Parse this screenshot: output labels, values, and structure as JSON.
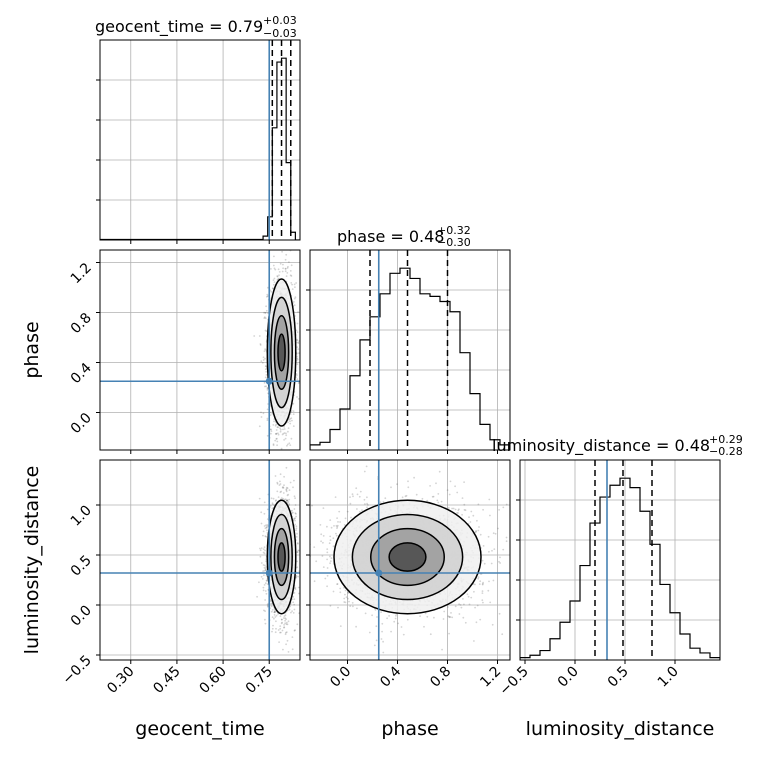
{
  "chart_data": {
    "type": "corner",
    "parameters": [
      {
        "name": "geocent_time",
        "range": [
          0.2,
          0.85
        ],
        "ticks": [
          0.3,
          0.45,
          0.6,
          0.75
        ],
        "tick_labels": [
          "0.30",
          "0.45",
          "0.60",
          "0.75"
        ],
        "truth": 0.75,
        "quantiles": [
          0.76,
          0.79,
          0.82
        ],
        "title_main": "geocent_time = 0.79",
        "title_sup": "+0.03",
        "title_sub": "−0.03",
        "hist_edges": [
          0.73,
          0.745,
          0.76,
          0.775,
          0.79,
          0.805,
          0.82,
          0.835,
          0.85
        ],
        "hist_counts": [
          2,
          12,
          58,
          92,
          94,
          40,
          4,
          0
        ]
      },
      {
        "name": "phase",
        "range": [
          -0.3,
          1.3
        ],
        "ticks": [
          0.0,
          0.4,
          0.8,
          1.2
        ],
        "tick_labels": [
          "0.0",
          "0.4",
          "0.8",
          "1.2"
        ],
        "truth": 0.25,
        "quantiles": [
          0.18,
          0.48,
          0.8
        ],
        "title_main": "phase = 0.48",
        "title_sup": "+0.32",
        "title_sub": "−0.30",
        "hist_edges": [
          -0.3,
          -0.22,
          -0.14,
          -0.06,
          0.02,
          0.1,
          0.18,
          0.26,
          0.34,
          0.42,
          0.5,
          0.58,
          0.66,
          0.74,
          0.82,
          0.9,
          0.98,
          1.06,
          1.14,
          1.22,
          1.3
        ],
        "hist_counts": [
          2,
          3,
          8,
          16,
          29,
          43,
          52,
          61,
          69,
          71,
          67,
          61,
          60,
          58,
          54,
          38,
          22,
          10,
          4,
          2
        ]
      },
      {
        "name": "luminosity_distance",
        "range": [
          -0.55,
          1.45
        ],
        "ticks": [
          -0.5,
          0.0,
          0.5,
          1.0
        ],
        "tick_labels": [
          "−0.5",
          "0.0",
          "0.5",
          "1.0"
        ],
        "truth": 0.32,
        "quantiles": [
          0.2,
          0.48,
          0.77
        ],
        "title_main": "luminosity_distance = 0.48",
        "title_sup": "+0.29",
        "title_sub": "−0.28",
        "hist_edges": [
          -0.55,
          -0.45,
          -0.35,
          -0.25,
          -0.15,
          -0.05,
          0.05,
          0.15,
          0.25,
          0.35,
          0.45,
          0.55,
          0.65,
          0.75,
          0.85,
          0.95,
          1.05,
          1.15,
          1.25,
          1.35,
          1.45
        ],
        "hist_counts": [
          1,
          2,
          4,
          9,
          16,
          25,
          40,
          58,
          69,
          74,
          77,
          73,
          63,
          49,
          32,
          20,
          11,
          5,
          3,
          1
        ]
      }
    ],
    "truth_color": "#4682b4",
    "hist_color": "#000000",
    "scatter_color": "#555555",
    "grid": true,
    "samples_shown": 2500
  }
}
